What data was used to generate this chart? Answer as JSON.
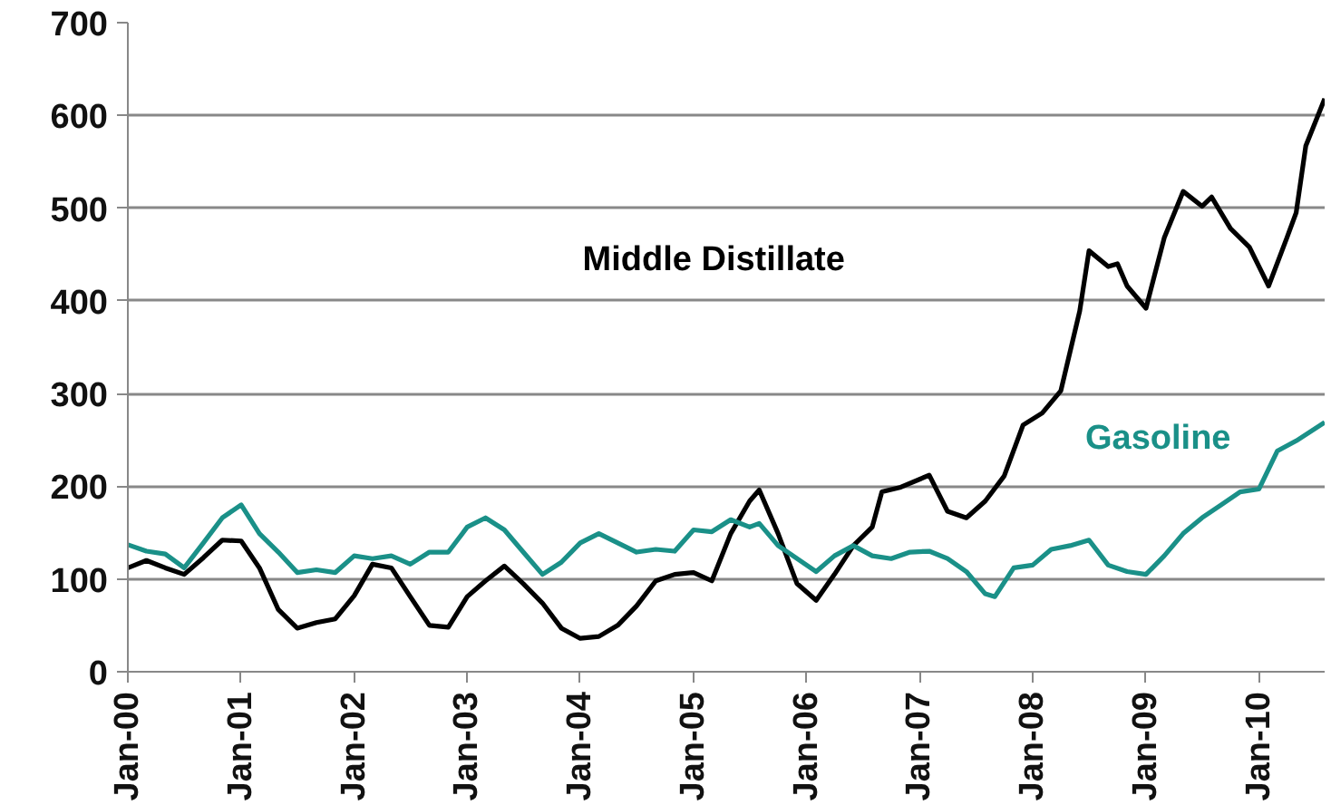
{
  "chart_data": {
    "type": "line",
    "x": [
      "2000-01",
      "2000-03",
      "2000-05",
      "2000-07",
      "2000-09",
      "2000-11",
      "2001-01",
      "2001-03",
      "2001-05",
      "2001-07",
      "2001-09",
      "2001-11",
      "2002-01",
      "2002-03",
      "2002-05",
      "2002-07",
      "2002-09",
      "2002-11",
      "2003-01",
      "2003-03",
      "2003-05",
      "2003-07",
      "2003-09",
      "2003-11",
      "2004-01",
      "2004-03",
      "2004-05",
      "2004-07",
      "2004-09",
      "2004-11",
      "2005-01",
      "2005-03",
      "2005-05",
      "2005-07",
      "2005-08",
      "2005-10",
      "2005-12",
      "2006-02",
      "2006-04",
      "2006-06",
      "2006-08",
      "2006-10",
      "2006-12",
      "2007-02",
      "2007-04",
      "2007-06",
      "2007-08",
      "2007-09",
      "2007-11",
      "2008-01",
      "2008-03",
      "2008-05",
      "2008-07",
      "2008-09",
      "2008-11",
      "2009-01",
      "2009-03",
      "2009-05",
      "2009-07",
      "2009-09",
      "2009-11",
      "2010-01",
      "2010-03",
      "2010-05",
      "2010-08"
    ],
    "series": [
      {
        "name": "Middle Distillate",
        "color": "#000000",
        "x": [
          "2000-01",
          "2000-03",
          "2000-05",
          "2000-07",
          "2000-09",
          "2000-11",
          "2001-01",
          "2001-03",
          "2001-05",
          "2001-07",
          "2001-09",
          "2001-11",
          "2002-01",
          "2002-03",
          "2002-05",
          "2002-07",
          "2002-09",
          "2002-11",
          "2003-01",
          "2003-03",
          "2003-05",
          "2003-07",
          "2003-09",
          "2003-11",
          "2004-01",
          "2004-03",
          "2004-05",
          "2004-07",
          "2004-09",
          "2004-11",
          "2005-01",
          "2005-03",
          "2005-05",
          "2005-07",
          "2005-08",
          "2005-10",
          "2005-12",
          "2006-02",
          "2006-04",
          "2006-06",
          "2006-08",
          "2006-09",
          "2006-11",
          "2007-02",
          "2007-04",
          "2007-06",
          "2007-08",
          "2007-10",
          "2007-12",
          "2008-02",
          "2008-04",
          "2008-06",
          "2008-07",
          "2008-09",
          "2008-10",
          "2008-11",
          "2009-01",
          "2009-03",
          "2009-05",
          "2009-07",
          "2009-08",
          "2009-10",
          "2009-12",
          "2010-02",
          "2010-04",
          "2010-05",
          "2010-06",
          "2010-08"
        ],
        "values": [
          112,
          120,
          112,
          105,
          123,
          142,
          141,
          112,
          67,
          47,
          53,
          57,
          82,
          116,
          112,
          81,
          50,
          48,
          81,
          98,
          114,
          95,
          74,
          47,
          36,
          38,
          50,
          71,
          98,
          105,
          107,
          98,
          149,
          184,
          196,
          149,
          95,
          77,
          105,
          136,
          156,
          194,
          199,
          212,
          173,
          166,
          184,
          211,
          266,
          279,
          303,
          389,
          454,
          437,
          440,
          416,
          392,
          468,
          518,
          502,
          512,
          478,
          458,
          416,
          468,
          495,
          567,
          618
        ]
      },
      {
        "name": "Gasoline",
        "color": "#1a9088",
        "values": [
          137,
          130,
          127,
          112,
          139,
          166,
          180,
          149,
          129,
          107,
          110,
          107,
          125,
          122,
          125,
          116,
          129,
          129,
          156,
          166,
          153,
          129,
          105,
          118,
          139,
          149,
          139,
          129,
          132,
          130,
          153,
          151,
          164,
          156,
          160,
          136,
          122,
          108,
          125,
          136,
          125,
          122,
          129,
          130,
          122,
          108,
          84,
          81,
          112,
          115,
          132,
          136,
          142,
          115,
          108,
          105,
          125,
          149,
          166,
          180,
          194,
          197,
          238,
          249,
          269
        ]
      }
    ],
    "xlim": [
      "2000-01",
      "2010-08"
    ],
    "xticks": [
      {
        "value": "2000-01",
        "label": "Jan-00"
      },
      {
        "value": "2001-01",
        "label": "Jan-01"
      },
      {
        "value": "2002-01",
        "label": "Jan-02"
      },
      {
        "value": "2003-01",
        "label": "Jan-03"
      },
      {
        "value": "2004-01",
        "label": "Jan-04"
      },
      {
        "value": "2005-01",
        "label": "Jan-05"
      },
      {
        "value": "2006-01",
        "label": "Jan-06"
      },
      {
        "value": "2007-01",
        "label": "Jan-07"
      },
      {
        "value": "2008-01",
        "label": "Jan-08"
      },
      {
        "value": "2009-01",
        "label": "Jan-09"
      },
      {
        "value": "2010-01",
        "label": "Jan-10"
      }
    ],
    "ylim": [
      0,
      700
    ],
    "yticks": [
      0,
      100,
      200,
      300,
      400,
      500,
      600,
      700
    ],
    "grid": "y",
    "legend": false,
    "line_style": "solid"
  }
}
